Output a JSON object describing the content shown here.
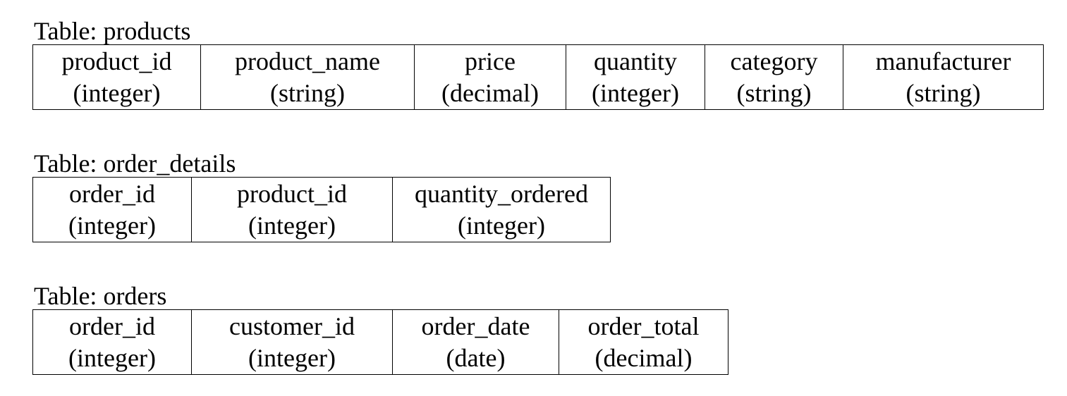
{
  "tables": [
    {
      "caption": "Table: products",
      "columns": [
        {
          "name": "product_id",
          "type": "(integer)"
        },
        {
          "name": "product_name",
          "type": "(string)"
        },
        {
          "name": "price",
          "type": "(decimal)"
        },
        {
          "name": "quantity",
          "type": "(integer)"
        },
        {
          "name": "category",
          "type": "(string)"
        },
        {
          "name": "manufacturer",
          "type": "(string)"
        }
      ]
    },
    {
      "caption": "Table: order_details",
      "columns": [
        {
          "name": "order_id",
          "type": "(integer)"
        },
        {
          "name": "product_id",
          "type": "(integer)"
        },
        {
          "name": "quantity_ordered",
          "type": "(integer)"
        }
      ]
    },
    {
      "caption": "Table: orders",
      "columns": [
        {
          "name": "order_id",
          "type": "(integer)"
        },
        {
          "name": "customer_id",
          "type": "(integer)"
        },
        {
          "name": "order_date",
          "type": "(date)"
        },
        {
          "name": "order_total",
          "type": "(decimal)"
        }
      ]
    }
  ]
}
